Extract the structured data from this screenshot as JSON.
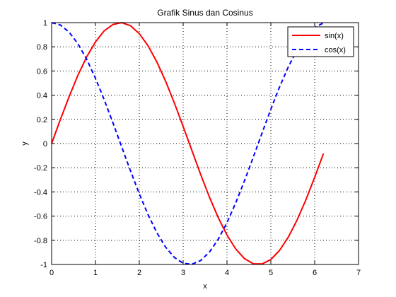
{
  "chart_data": {
    "type": "line",
    "title": "Grafik Sinus dan Cosinus",
    "xlabel": "x",
    "ylabel": "y",
    "xlim": [
      0,
      7
    ],
    "ylim": [
      -1,
      1
    ],
    "xticks": [
      "0",
      "1",
      "2",
      "3",
      "4",
      "5",
      "6",
      "7"
    ],
    "yticks": [
      "-1",
      "-0.8",
      "-0.6",
      "-0.4",
      "-0.2",
      "0",
      "0.2",
      "0.4",
      "0.6",
      "0.8",
      "1"
    ],
    "grid": true,
    "legend_position": "top-right",
    "x": [
      0,
      0.2,
      0.4,
      0.6,
      0.8,
      1.0,
      1.2,
      1.4,
      1.6,
      1.8,
      2.0,
      2.2,
      2.4,
      2.6,
      2.8,
      3.0,
      3.2,
      3.4,
      3.6,
      3.8,
      4.0,
      4.2,
      4.4,
      4.6,
      4.8,
      5.0,
      5.2,
      5.4,
      5.6,
      5.8,
      6.0,
      6.2
    ],
    "series": [
      {
        "name": "sin(x)",
        "color": "#ff0000",
        "style": "solid",
        "values": [
          0,
          0.199,
          0.389,
          0.565,
          0.717,
          0.841,
          0.932,
          0.985,
          1.0,
          0.974,
          0.909,
          0.808,
          0.675,
          0.516,
          0.335,
          0.141,
          -0.058,
          -0.256,
          -0.443,
          -0.612,
          -0.757,
          -0.872,
          -0.952,
          -0.994,
          -0.996,
          -0.959,
          -0.883,
          -0.773,
          -0.631,
          -0.465,
          -0.279,
          -0.083
        ]
      },
      {
        "name": "cos(x)",
        "color": "#0000ff",
        "style": "dashed",
        "values": [
          1.0,
          0.98,
          0.921,
          0.825,
          0.697,
          0.54,
          0.362,
          0.17,
          -0.029,
          -0.227,
          -0.416,
          -0.589,
          -0.737,
          -0.857,
          -0.942,
          -0.99,
          -0.998,
          -0.967,
          -0.897,
          -0.791,
          -0.654,
          -0.49,
          -0.307,
          -0.112,
          0.087,
          0.284,
          0.469,
          0.635,
          0.776,
          0.886,
          0.96,
          0.997
        ]
      }
    ]
  }
}
